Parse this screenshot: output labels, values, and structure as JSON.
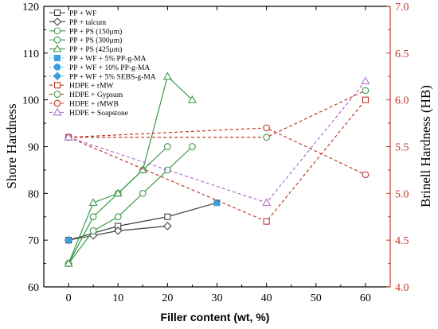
{
  "chart_data": {
    "type": "line",
    "xlabel": "Filler content (wt, %)",
    "ylabel_left": "Shore Hardness",
    "ylabel_right": "Brinell Hardness (HB)",
    "xlim": [
      -5,
      65
    ],
    "xticks": [
      "0",
      "10",
      "20",
      "30",
      "40",
      "50",
      "60"
    ],
    "ylim_left": [
      60,
      120
    ],
    "yticks_left": [
      "60",
      "70",
      "80",
      "90",
      "100",
      "110",
      "120"
    ],
    "ylim_right": [
      4.0,
      7.0
    ],
    "yticks_right": [
      "4.0",
      "4.5",
      "5.0",
      "5.5",
      "6.0",
      "6.5",
      "7.0"
    ],
    "legend_position": "top-left",
    "colors": {
      "black": "#404040",
      "green": "#3a9a4a",
      "cyan": "#3aa0dc",
      "red": "#c0392b",
      "pink": "#b36fc9",
      "right_axis": "#c0392b"
    },
    "series": [
      {
        "name": "PP + WF",
        "axis": "left",
        "marker": "square",
        "color": "black",
        "dash": "solid",
        "x": [
          0,
          10,
          20,
          30
        ],
        "y": [
          70,
          73,
          75,
          78
        ]
      },
      {
        "name": "PP + talcum",
        "axis": "left",
        "marker": "diamond",
        "color": "black",
        "dash": "solid",
        "x": [
          0,
          5,
          10,
          20
        ],
        "y": [
          70,
          71,
          72,
          73
        ]
      },
      {
        "name": "PP + PS (150μm)",
        "axis": "left",
        "marker": "circle",
        "color": "green",
        "dash": "solid",
        "x": [
          0,
          5,
          10,
          15,
          20,
          25
        ],
        "y": [
          65,
          72,
          75,
          80,
          85,
          90
        ]
      },
      {
        "name": "PP + PS (300μm)",
        "axis": "left",
        "marker": "circle",
        "color": "green",
        "dash": "solid",
        "x": [
          0,
          5,
          10,
          15,
          20
        ],
        "y": [
          65,
          75,
          80,
          85,
          90
        ]
      },
      {
        "name": "PP + PS (425μm)",
        "axis": "left",
        "marker": "triangle",
        "color": "green",
        "dash": "solid",
        "x": [
          0,
          5,
          10,
          15,
          20,
          25
        ],
        "y": [
          65,
          78,
          80,
          85,
          105,
          100
        ]
      },
      {
        "name": "PP + WF + 5% PP-g-MA",
        "axis": "left",
        "marker": "square-filled",
        "color": "cyan",
        "dash": "dotted",
        "x": [
          30
        ],
        "y": [
          78
        ]
      },
      {
        "name": "PP + WF + 10% PP-g-MA",
        "axis": "left",
        "marker": "circle-filled",
        "color": "cyan",
        "dash": "dotted",
        "x": [],
        "y": []
      },
      {
        "name": "PP + WF + 5% SEBS-g-MA",
        "axis": "left",
        "marker": "diamond-filled",
        "color": "cyan",
        "dash": "dotted",
        "x": [
          0
        ],
        "y": [
          70
        ]
      },
      {
        "name": "HDPE + rMW",
        "axis": "right",
        "marker": "square",
        "color": "red",
        "dash": "dashed",
        "x": [
          0,
          40,
          60
        ],
        "y": [
          5.6,
          4.7,
          6.0
        ]
      },
      {
        "name": "HDPE + Gypsum",
        "axis": "right",
        "marker": "circle",
        "color": "green",
        "dash": "dashed-red",
        "x": [
          0,
          40,
          60
        ],
        "y": [
          5.6,
          5.6,
          6.1
        ]
      },
      {
        "name": "HDPE + rMWB",
        "axis": "right",
        "marker": "circle",
        "color": "red",
        "dash": "dashed",
        "x": [
          0,
          40,
          60
        ],
        "y": [
          5.6,
          5.7,
          5.2
        ]
      },
      {
        "name": "HDPE + Soapstone",
        "axis": "right",
        "marker": "triangle",
        "color": "pink",
        "dash": "dashed",
        "x": [
          0,
          40,
          60
        ],
        "y": [
          5.6,
          4.9,
          6.2
        ]
      }
    ]
  }
}
